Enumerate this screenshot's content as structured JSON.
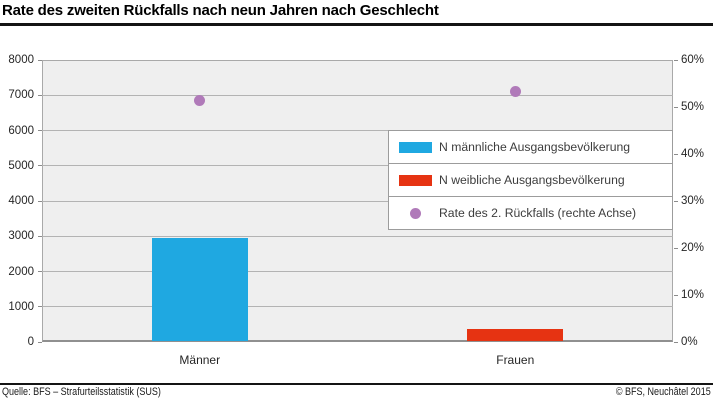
{
  "title": "Rate des zweiten Rückfalls nach neun Jahren nach Geschlecht",
  "footer": {
    "source": "Quelle: BFS – Strafurteilsstatistik (SUS)",
    "copyright": "© BFS, Neuchâtel 2015"
  },
  "chart_data": {
    "type": "bar",
    "categories": [
      "Männer",
      "Frauen"
    ],
    "series": [
      {
        "name": "N männliche Ausgangsbevölkerung",
        "kind": "bar",
        "axis": "left",
        "color": "#1fa8e1",
        "values": [
          2920,
          null
        ]
      },
      {
        "name": "N weibliche Ausgangsbevölkerung",
        "kind": "bar",
        "axis": "left",
        "color": "#e63312",
        "values": [
          null,
          350
        ]
      },
      {
        "name": "Rate des 2. Rückfalls (rechte Achse)",
        "kind": "point",
        "axis": "right",
        "color": "#b07ab9",
        "values": [
          51.3,
          53.2
        ]
      }
    ],
    "left_axis": {
      "min": 0,
      "max": 8000,
      "step": 1000
    },
    "right_axis": {
      "min": 0,
      "max": 60,
      "step": 10,
      "suffix": "%"
    },
    "grid": true,
    "legend_position": "upper right",
    "plot_bg": "#efefef",
    "grid_color": "#b3b3b3"
  }
}
